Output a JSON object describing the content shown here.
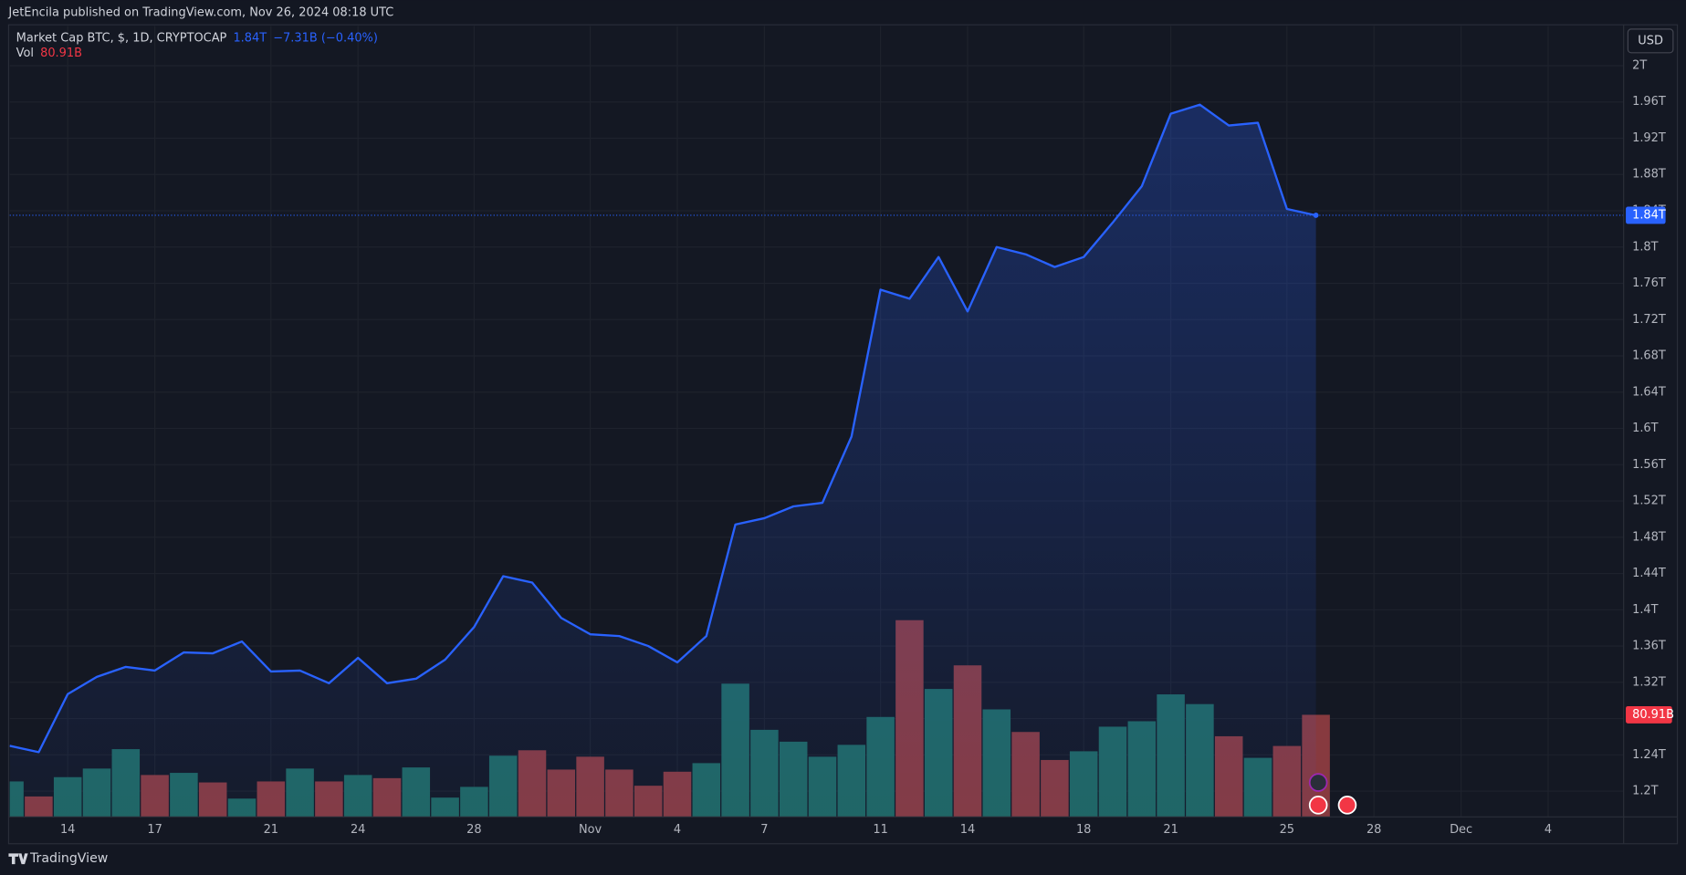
{
  "header": {
    "publisher": "JetEncila published on TradingView.com, Nov 26, 2024 08:18 UTC",
    "brand": "TradingView"
  },
  "chart_data": {
    "type": "area",
    "title": "Market Cap BTC, $, 1D, CRYPTOCAP",
    "last_value_label": "1.84T",
    "change": "−7.31B (−0.40%)",
    "currency": "USD",
    "x": [
      0,
      1,
      2,
      3,
      4,
      5,
      6,
      7,
      8,
      9,
      10,
      11,
      12,
      13,
      14,
      15,
      16,
      17,
      18,
      19,
      20,
      21,
      22,
      23,
      24,
      25,
      26,
      27,
      28,
      29,
      30,
      31,
      32,
      33,
      34,
      35,
      36,
      37,
      38,
      39,
      40,
      41,
      42,
      43,
      44,
      45
    ],
    "xlim": [
      0,
      55.6
    ],
    "xticks": [
      {
        "value": 2,
        "label": "14"
      },
      {
        "value": 5,
        "label": "17"
      },
      {
        "value": 9,
        "label": "21"
      },
      {
        "value": 12,
        "label": "24"
      },
      {
        "value": 16,
        "label": "28"
      },
      {
        "value": 20,
        "label": "Nov"
      },
      {
        "value": 23,
        "label": "4"
      },
      {
        "value": 26,
        "label": "7"
      },
      {
        "value": 30,
        "label": "11"
      },
      {
        "value": 33,
        "label": "14"
      },
      {
        "value": 37,
        "label": "18"
      },
      {
        "value": 40,
        "label": "21"
      },
      {
        "value": 44,
        "label": "25"
      },
      {
        "value": 47,
        "label": "28"
      },
      {
        "value": 50,
        "label": "Dec"
      },
      {
        "value": 53,
        "label": "4"
      }
    ],
    "ylim": [
      1.1716,
      2.0439
    ],
    "yticks": [
      {
        "value": 1.2,
        "label": "1.2T"
      },
      {
        "value": 1.24,
        "label": "1.24T"
      },
      {
        "value": 1.28,
        "label": "1.28T"
      },
      {
        "value": 1.32,
        "label": "1.32T"
      },
      {
        "value": 1.36,
        "label": "1.36T"
      },
      {
        "value": 1.4,
        "label": "1.4T"
      },
      {
        "value": 1.44,
        "label": "1.44T"
      },
      {
        "value": 1.48,
        "label": "1.48T"
      },
      {
        "value": 1.52,
        "label": "1.52T"
      },
      {
        "value": 1.56,
        "label": "1.56T"
      },
      {
        "value": 1.6,
        "label": "1.6T"
      },
      {
        "value": 1.64,
        "label": "1.64T"
      },
      {
        "value": 1.68,
        "label": "1.68T"
      },
      {
        "value": 1.72,
        "label": "1.72T"
      },
      {
        "value": 1.76,
        "label": "1.76T"
      },
      {
        "value": 1.8,
        "label": "1.8T"
      },
      {
        "value": 1.84,
        "label": "1.84T"
      },
      {
        "value": 1.88,
        "label": "1.88T"
      },
      {
        "value": 1.92,
        "label": "1.92T"
      },
      {
        "value": 1.96,
        "label": "1.96T"
      },
      {
        "value": 2,
        "label": "2T"
      }
    ],
    "y2lim": [
      0,
      626.9
    ],
    "grid": true,
    "series": [
      {
        "color": "#2962ff",
        "values": [
          1.25,
          1.243,
          1.307,
          1.326,
          1.337,
          1.333,
          1.353,
          1.352,
          1.365,
          1.332,
          1.333,
          1.319,
          1.347,
          1.319,
          1.324,
          1.345,
          1.381,
          1.437,
          1.43,
          1.391,
          1.373,
          1.371,
          1.36,
          1.342,
          1.371,
          1.494,
          1.501,
          1.514,
          1.518,
          1.591,
          1.753,
          1.743,
          1.789,
          1.729,
          1.8,
          1.792,
          1.778,
          1.789,
          1.827,
          1.867,
          1.947,
          1.957,
          1.934,
          1.937,
          1.842,
          1.835
        ]
      },
      {
        "name": "Vol",
        "axis": "y2",
        "type": "bar",
        "value_label": "80.91B",
        "values": [
          28.1,
          16.2,
          31.5,
          38.3,
          53.7,
          33.2,
          34.9,
          27.3,
          14.5,
          28.1,
          38.3,
          28.1,
          33.2,
          30.7,
          39.2,
          15.3,
          23.8,
          48.5,
          52.8,
          37.5,
          47.7,
          37.5,
          24.7,
          35.8,
          42.6,
          105.6,
          69.0,
          59.6,
          47.7,
          57.1,
          79.2,
          155.9,
          101.4,
          120.1,
          85.2,
          67.3,
          45.1,
          52.0,
          71.5,
          75.8,
          97.1,
          89.4,
          63.9,
          46.8,
          56.2,
          80.91
        ],
        "colors": [
          "#1f6660",
          "#873a3f",
          "#1f6660",
          "#1f6660",
          "#1f6660",
          "#873a3f",
          "#1f6660",
          "#873a3f",
          "#1f6660",
          "#873a3f",
          "#1f6660",
          "#873a3f",
          "#1f6660",
          "#873a3f",
          "#1f6660",
          "#1f6660",
          "#1f6660",
          "#1f6660",
          "#873a3f",
          "#873a3f",
          "#873a3f",
          "#873a3f",
          "#873a3f",
          "#873a3f",
          "#1f6660",
          "#1f6660",
          "#1f6660",
          "#1f6660",
          "#1f6660",
          "#1f6660",
          "#1f6660",
          "#873a3f",
          "#1f6660",
          "#873a3f",
          "#1f6660",
          "#873a3f",
          "#873a3f",
          "#1f6660",
          "#1f6660",
          "#1f6660",
          "#1f6660",
          "#1f6660",
          "#873a3f",
          "#1f6660",
          "#873a3f",
          "#873a3f"
        ]
      }
    ]
  }
}
